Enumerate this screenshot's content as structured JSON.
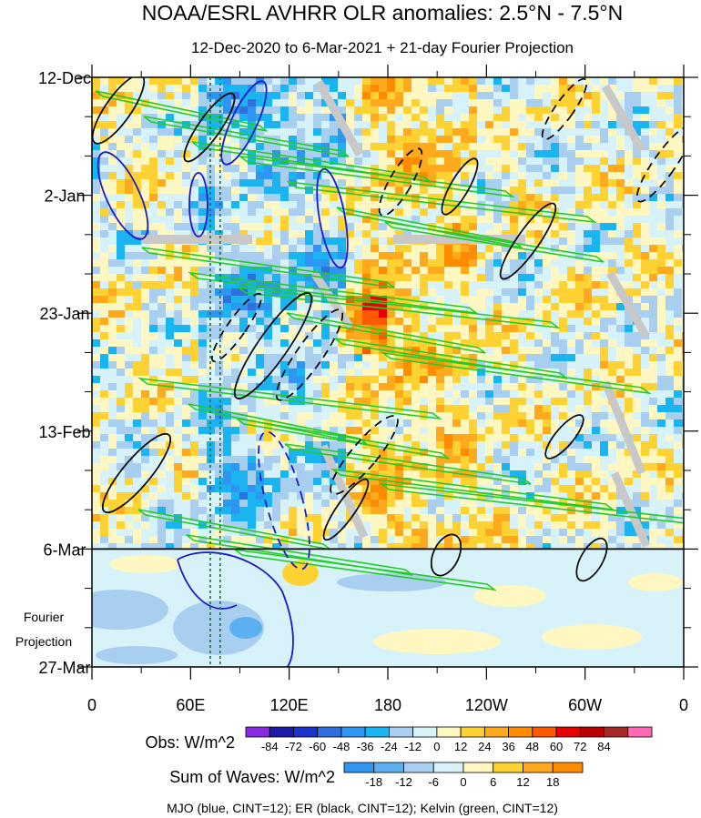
{
  "chart_data": {
    "type": "heatmap",
    "title": "NOAA/ESRL AVHRR OLR anomalies: 2.5°N - 7.5°N",
    "subtitle": "12-Dec-2020 to 6-Mar-2021 + 21-day Fourier Projection",
    "x_ticks": [
      "0",
      "60E",
      "120E",
      "180",
      "120W",
      "60W",
      "0"
    ],
    "x_tick_degrees": [
      0,
      60,
      120,
      180,
      240,
      300,
      360
    ],
    "y_ticks": [
      "12-Dec",
      "2-Jan",
      "23-Jan",
      "13-Feb",
      "6-Mar",
      "27-Mar"
    ],
    "y_tick_days": [
      0,
      21,
      42,
      63,
      84,
      105
    ],
    "observation_end_day": 84,
    "projection_label_1": "Fourier",
    "projection_label_2": "Projection",
    "reference_lines_deg": [
      72,
      78
    ],
    "obs_colorbar": {
      "label": "Obs: W/m^2",
      "levels": [
        "-84",
        "-72",
        "-60",
        "-48",
        "-36",
        "-24",
        "-12",
        "0",
        "12",
        "24",
        "36",
        "48",
        "60",
        "72",
        "84"
      ],
      "colors": [
        "#8a2be2",
        "#1c1ca8",
        "#1e33cc",
        "#2f6fe0",
        "#2e96f0",
        "#1ab4f0",
        "#a9cff0",
        "#d8f2fa",
        "#fff7c2",
        "#ffd233",
        "#ffaa1e",
        "#ff8c00",
        "#ff5a00",
        "#e80000",
        "#b80000",
        "#a52a2a",
        "#ff69b4"
      ]
    },
    "wave_colorbar": {
      "label": "Sum of Waves: W/m^2",
      "levels": [
        "-18",
        "-12",
        "-6",
        "0",
        "6",
        "12",
        "18"
      ],
      "colors": [
        "#2e96f0",
        "#5cb0f0",
        "#a9cff0",
        "#d8f2fa",
        "#fff7c2",
        "#ffd233",
        "#ffaa1e",
        "#ff8c00"
      ]
    },
    "caption": "MJO (blue, CINT=12); ER (black, CINT=12); Kelvin (green, CINT=12)",
    "contour_series": [
      {
        "name": "MJO",
        "color": "#1a1acc",
        "cint": 12
      },
      {
        "name": "ER",
        "color": "#000000",
        "cint": 12
      },
      {
        "name": "Kelvin",
        "color": "#22cc22",
        "cint": 12
      }
    ]
  }
}
